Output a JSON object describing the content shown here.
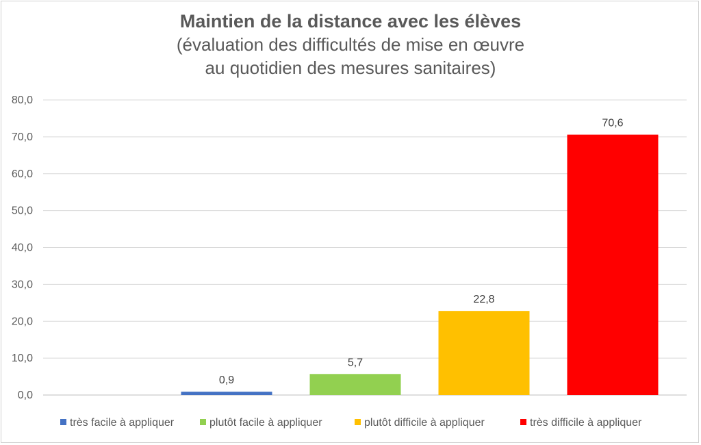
{
  "chart_data": {
    "type": "bar",
    "title": "Maintien de la distance avec les élèves",
    "subtitle_lines": [
      "(évaluation des difficultés de mise en œuvre",
      "au quotidien des mesures sanitaires)"
    ],
    "xlabel": "",
    "ylabel": "",
    "ylim": [
      0,
      80
    ],
    "y_ticks": [
      "0,0",
      "10,0",
      "20,0",
      "30,0",
      "40,0",
      "50,0",
      "60,0",
      "70,0",
      "80,0"
    ],
    "grid": true,
    "legend_position": "bottom",
    "series": [
      {
        "name": "très facile à appliquer",
        "value": 0.9,
        "label": "0,9",
        "color": "#4472C4"
      },
      {
        "name": "plutôt facile à appliquer",
        "value": 5.7,
        "label": "5,7",
        "color": "#92D050"
      },
      {
        "name": "plutôt difficile à appliquer",
        "value": 22.8,
        "label": "22,8",
        "color": "#FFC000"
      },
      {
        "name": "très difficile à appliquer",
        "value": 70.6,
        "label": "70,6",
        "color": "#FF0000"
      }
    ]
  }
}
